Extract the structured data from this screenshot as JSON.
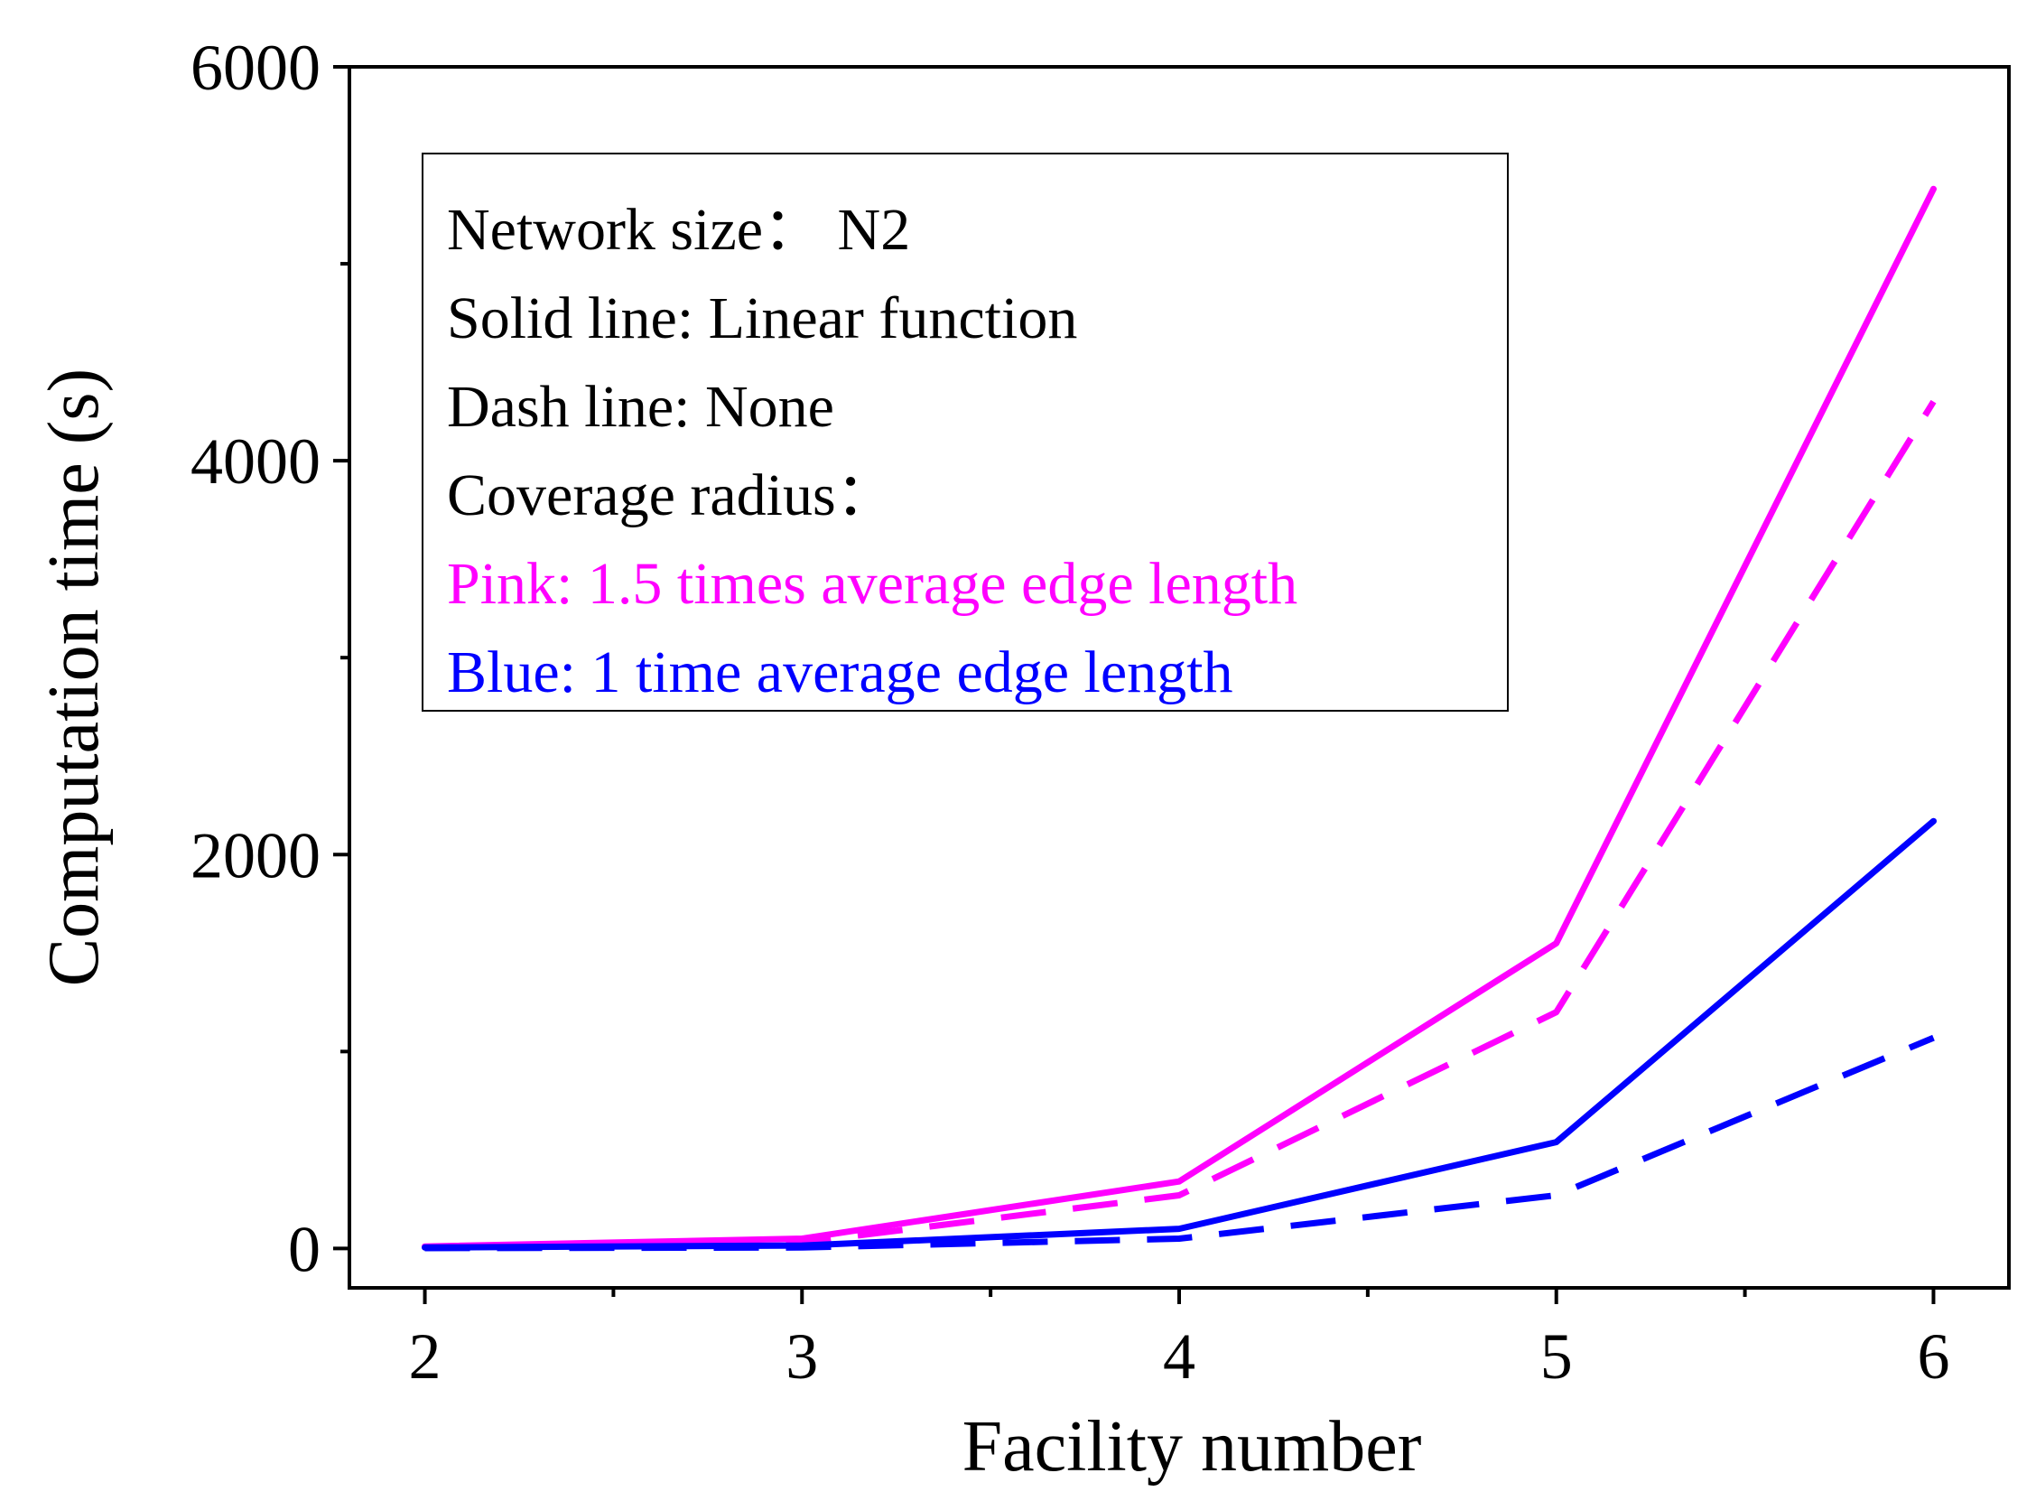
{
  "chart_data": {
    "type": "line",
    "xlabel": "Facility number",
    "ylabel": "Computation time (s)",
    "xlim": [
      1.8,
      6.2
    ],
    "ylim": [
      -200,
      6000
    ],
    "x_ticks": [
      2,
      3,
      4,
      5,
      6
    ],
    "x_minor_ticks": [
      2.5,
      3.5,
      4.5,
      5.5
    ],
    "y_ticks": [
      0,
      2000,
      4000,
      6000
    ],
    "y_minor_ticks": [
      1000,
      3000,
      5000
    ],
    "series": [
      {
        "name": "Pink solid (Linear function, 1.5 times average edge length)",
        "color": "#ff00ff",
        "style": "solid",
        "x": [
          2,
          3,
          4,
          5,
          6
        ],
        "y": [
          10,
          50,
          340,
          1550,
          5380
        ]
      },
      {
        "name": "Pink dash (None, 1.5 times average edge length)",
        "color": "#ff00ff",
        "style": "dash",
        "x": [
          2,
          3,
          4,
          5,
          6
        ],
        "y": [
          5,
          30,
          270,
          1200,
          4300
        ]
      },
      {
        "name": "Blue solid (Linear function, 1 time average edge length)",
        "color": "#0000ff",
        "style": "solid",
        "x": [
          2,
          3,
          4,
          5,
          6
        ],
        "y": [
          5,
          15,
          100,
          540,
          2170
        ]
      },
      {
        "name": "Blue dash (None, 1 time average edge length)",
        "color": "#0000ff",
        "style": "dash",
        "x": [
          2,
          3,
          4,
          5,
          6
        ],
        "y": [
          2,
          5,
          50,
          270,
          1070
        ]
      }
    ],
    "legend": {
      "placement": "top-left",
      "lines": [
        {
          "text": "Network size： N2",
          "color": "#000000"
        },
        {
          "text": "Solid line: Linear function",
          "color": "#000000"
        },
        {
          "text": "Dash line: None",
          "color": "#000000"
        },
        {
          "text": "Coverage radius：",
          "color": "#000000"
        },
        {
          "text": "Pink: 1.5 times average edge length",
          "color": "#ff00ff"
        },
        {
          "text": "Blue:  1  time average edge length",
          "color": "#0000ff"
        }
      ]
    }
  }
}
